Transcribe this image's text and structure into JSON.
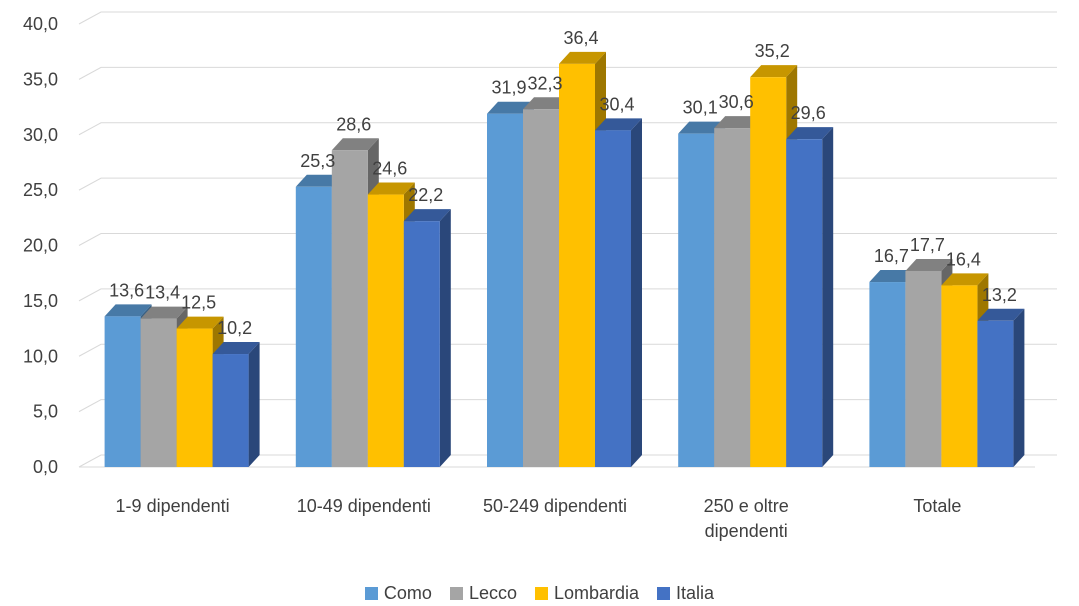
{
  "chart_data": {
    "type": "bar",
    "title": "",
    "xlabel": "",
    "ylabel": "",
    "ylim": [
      0,
      40
    ],
    "yticks": [
      "0,0",
      "5,0",
      "10,0",
      "15,0",
      "20,0",
      "25,0",
      "30,0",
      "35,0",
      "40,0"
    ],
    "categories": [
      [
        "1-9 dipendenti"
      ],
      [
        "10-49 dipendenti"
      ],
      [
        "50-249 dipendenti"
      ],
      [
        "250 e oltre",
        "dipendenti"
      ],
      [
        "Totale"
      ]
    ],
    "legend_position": "bottom",
    "grid": true,
    "series": [
      {
        "name": "Como",
        "color": "#5B9BD5",
        "values": [
          13.6,
          25.3,
          31.9,
          30.1,
          16.7
        ],
        "labels": [
          "13,6",
          "25,3",
          "31,9",
          "30,1",
          "16,7"
        ]
      },
      {
        "name": "Lecco",
        "color": "#A5A5A5",
        "values": [
          13.4,
          28.6,
          32.3,
          30.6,
          17.7
        ],
        "labels": [
          "13,4",
          "28,6",
          "32,3",
          "30,6",
          "17,7"
        ]
      },
      {
        "name": "Lombardia",
        "color": "#FFC000",
        "values": [
          12.5,
          24.6,
          36.4,
          35.2,
          16.4
        ],
        "labels": [
          "12,5",
          "24,6",
          "36,4",
          "35,2",
          "16,4"
        ]
      },
      {
        "name": "Italia",
        "color": "#4472C4",
        "values": [
          10.2,
          22.2,
          30.4,
          29.6,
          13.2
        ],
        "labels": [
          "10,2",
          "22,2",
          "30,4",
          "29,6",
          "13,2"
        ]
      }
    ]
  }
}
